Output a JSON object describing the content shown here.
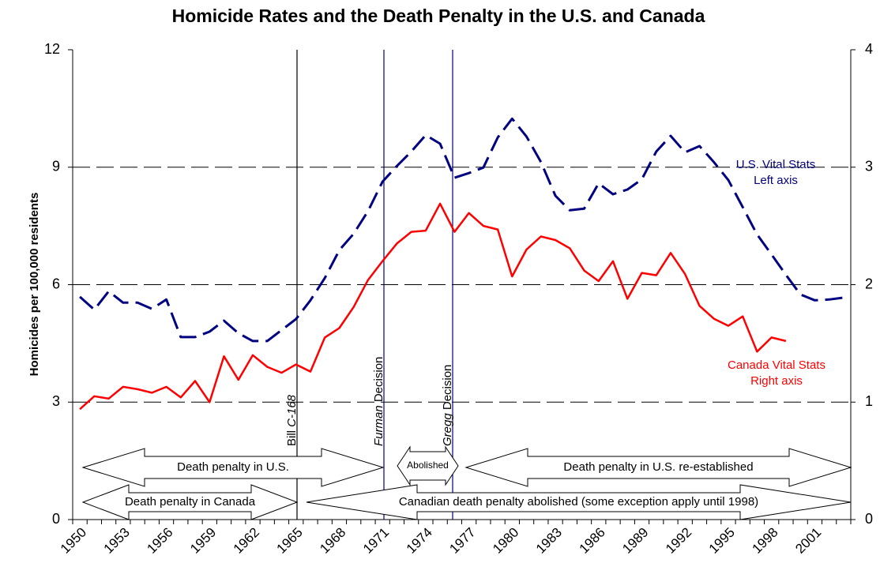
{
  "chart_data": {
    "type": "line",
    "title": "Homicide Rates and the Death Penalty in the U.S. and Canada",
    "y_label": "Homicides per 100,000 residents",
    "categories": [
      "1950",
      null,
      null,
      "1953",
      null,
      null,
      "1956",
      null,
      null,
      "1959",
      null,
      null,
      "1962",
      null,
      null,
      "1965",
      null,
      null,
      "1968",
      null,
      null,
      "1971",
      null,
      null,
      "1974",
      null,
      null,
      "1977",
      null,
      null,
      "1980",
      null,
      null,
      "1983",
      null,
      null,
      "1986",
      null,
      null,
      "1989",
      null,
      null,
      "1992",
      null,
      null,
      "1995",
      null,
      null,
      "1998",
      null,
      null,
      "2001",
      null,
      null
    ],
    "series": [
      {
        "name": "U.S. Vital Stats",
        "note": "Left axis",
        "color": "#000080",
        "dashed": true,
        "axis": "y",
        "values": [
          5.69,
          5.36,
          5.83,
          5.54,
          5.54,
          5.38,
          5.62,
          4.66,
          4.66,
          4.8,
          5.08,
          4.76,
          4.56,
          4.56,
          4.84,
          5.12,
          5.6,
          6.17,
          6.88,
          7.3,
          7.88,
          8.63,
          9.03,
          9.4,
          9.82,
          9.6,
          8.73,
          8.85,
          8.99,
          9.76,
          10.24,
          9.78,
          9.13,
          8.27,
          7.9,
          7.94,
          8.59,
          8.31,
          8.43,
          8.69,
          9.4,
          9.8,
          9.38,
          9.54,
          9.13,
          8.67,
          7.98,
          7.28,
          6.77,
          6.25,
          5.75,
          5.6,
          5.62,
          5.67
        ]
      },
      {
        "name": "Canada Vital Stats",
        "note": "Right axis",
        "color": "#ff0000",
        "dashed": false,
        "axis": "y2",
        "values": [
          0.94,
          1.05,
          1.03,
          1.13,
          1.11,
          1.08,
          1.13,
          1.04,
          1.18,
          1.0,
          1.39,
          1.19,
          1.4,
          1.3,
          1.25,
          1.32,
          1.26,
          1.55,
          1.63,
          1.81,
          2.04,
          2.2,
          2.35,
          2.45,
          2.46,
          2.69,
          2.45,
          2.61,
          2.5,
          2.47,
          2.07,
          2.3,
          2.41,
          2.38,
          2.31,
          2.12,
          2.03,
          2.2,
          1.88,
          2.1,
          2.08,
          2.27,
          2.09,
          1.82,
          1.71,
          1.65,
          1.73,
          1.43,
          1.55,
          1.52,
          null,
          null,
          null,
          null
        ]
      }
    ],
    "ylim": [
      0,
      12
    ],
    "yticks": [
      0,
      3,
      6,
      9,
      12
    ],
    "y2lim": [
      0,
      4
    ],
    "y2ticks": [
      0,
      1,
      2,
      3,
      4
    ],
    "grid": true,
    "events": [
      [
        {
          "text": "Bill "
        },
        {
          "text": "C-168",
          "italic": true
        }
      ],
      [
        {
          "text": "Furman",
          "italic": true
        },
        {
          "text": " Decision"
        }
      ],
      [
        {
          "text": "Gregg",
          "italic": true
        },
        {
          "text": " Decision"
        }
      ]
    ],
    "periods": [
      "Death penalty in U.S.",
      "Abolished",
      "Death penalty in U.S. re-established",
      "Death penalty in Canada",
      "Canadian death penalty abolished (some exception apply until 1998)"
    ]
  }
}
